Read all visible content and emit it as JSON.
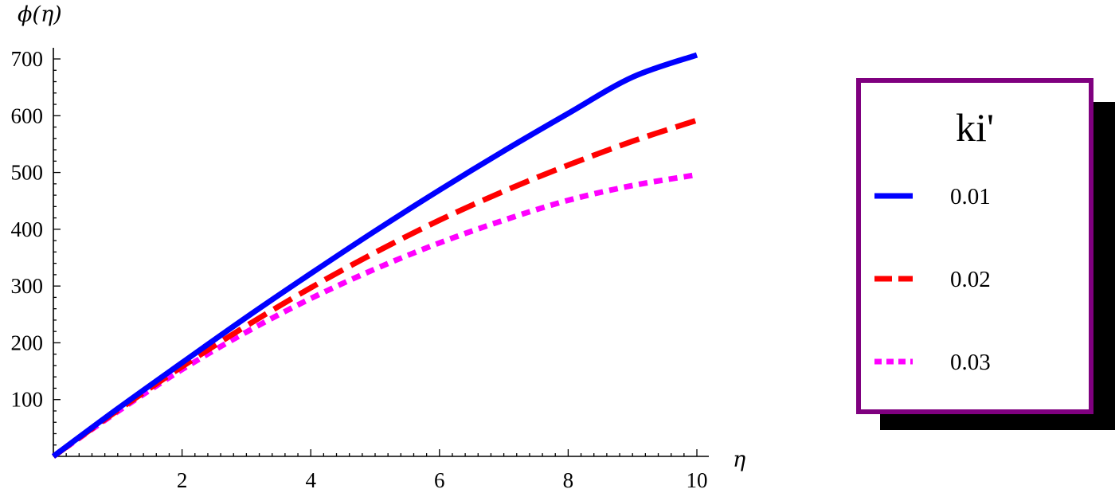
{
  "chart_data": {
    "type": "line",
    "title": "",
    "xlabel": "η",
    "ylabel": "ϕ(η)",
    "xlim": [
      0,
      10
    ],
    "ylim": [
      0,
      700
    ],
    "x_ticks": [
      2,
      4,
      6,
      8,
      10
    ],
    "y_ticks": [
      100,
      200,
      300,
      400,
      500,
      600,
      700
    ],
    "x_tick_labels": [
      "2",
      "4",
      "6",
      "8",
      "10"
    ],
    "y_tick_labels": [
      "100",
      "200",
      "300",
      "400",
      "500",
      "600",
      "700"
    ],
    "grid": false,
    "legend": {
      "title": "ki'",
      "placement": "right"
    },
    "x": [
      0,
      1,
      2,
      3,
      4,
      5,
      6,
      7,
      8,
      9,
      10
    ],
    "series": [
      {
        "name": "0.01",
        "color": "#0000ff",
        "style": "solid",
        "values": [
          0,
          84,
          165,
          245,
          322,
          397,
          469,
          538,
          604,
          668,
          707
        ]
      },
      {
        "name": "0.02",
        "color": "#ff0000",
        "style": "dashed",
        "values": [
          0,
          81,
          158,
          230,
          297,
          359,
          416,
          467,
          513,
          555,
          592
        ]
      },
      {
        "name": "0.03",
        "color": "#ff00ff",
        "style": "dotted",
        "values": [
          0,
          79,
          153,
          219,
          278,
          330,
          376,
          416,
          451,
          477,
          496
        ]
      }
    ]
  }
}
